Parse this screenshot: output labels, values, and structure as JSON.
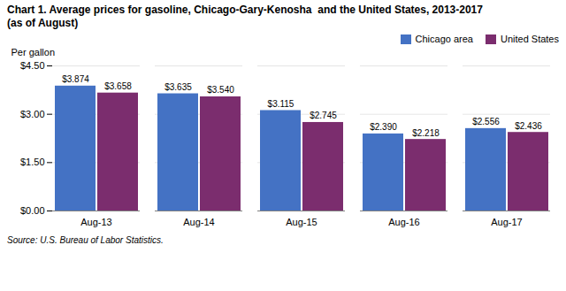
{
  "chart_data": {
    "type": "bar",
    "title": "Chart 1. Average prices for gasoline, Chicago-Gary-Kenosha  and the United States, 2013-2017",
    "subtitle": "(as of August)",
    "ylabel": "Per gallon",
    "source": "Source: U.S. Bureau of Labor Statistics.",
    "categories": [
      "Aug-13",
      "Aug-14",
      "Aug-15",
      "Aug-16",
      "Aug-17"
    ],
    "series": [
      {
        "name": "Chicago area",
        "color": "#4472C4",
        "values": [
          3.874,
          3.635,
          3.115,
          2.39,
          2.556
        ],
        "value_labels": [
          "$3.874",
          "$3.635",
          "$3.115",
          "$2.390",
          "$2.556"
        ]
      },
      {
        "name": "United States",
        "color": "#7B2D6E",
        "values": [
          3.658,
          3.54,
          2.745,
          2.218,
          2.436
        ],
        "value_labels": [
          "$3.658",
          "$3.540",
          "$2.745",
          "$2.218",
          "$2.436"
        ]
      }
    ],
    "ylim": [
      0.0,
      4.5
    ],
    "yticks": [
      {
        "value": 0.0,
        "label": "$0.00"
      },
      {
        "value": 1.5,
        "label": "$1.50"
      },
      {
        "value": 3.0,
        "label": "$3.00"
      },
      {
        "value": 4.5,
        "label": "$4.50"
      }
    ],
    "grid": true,
    "legend": "upper right",
    "data_labels": true
  }
}
